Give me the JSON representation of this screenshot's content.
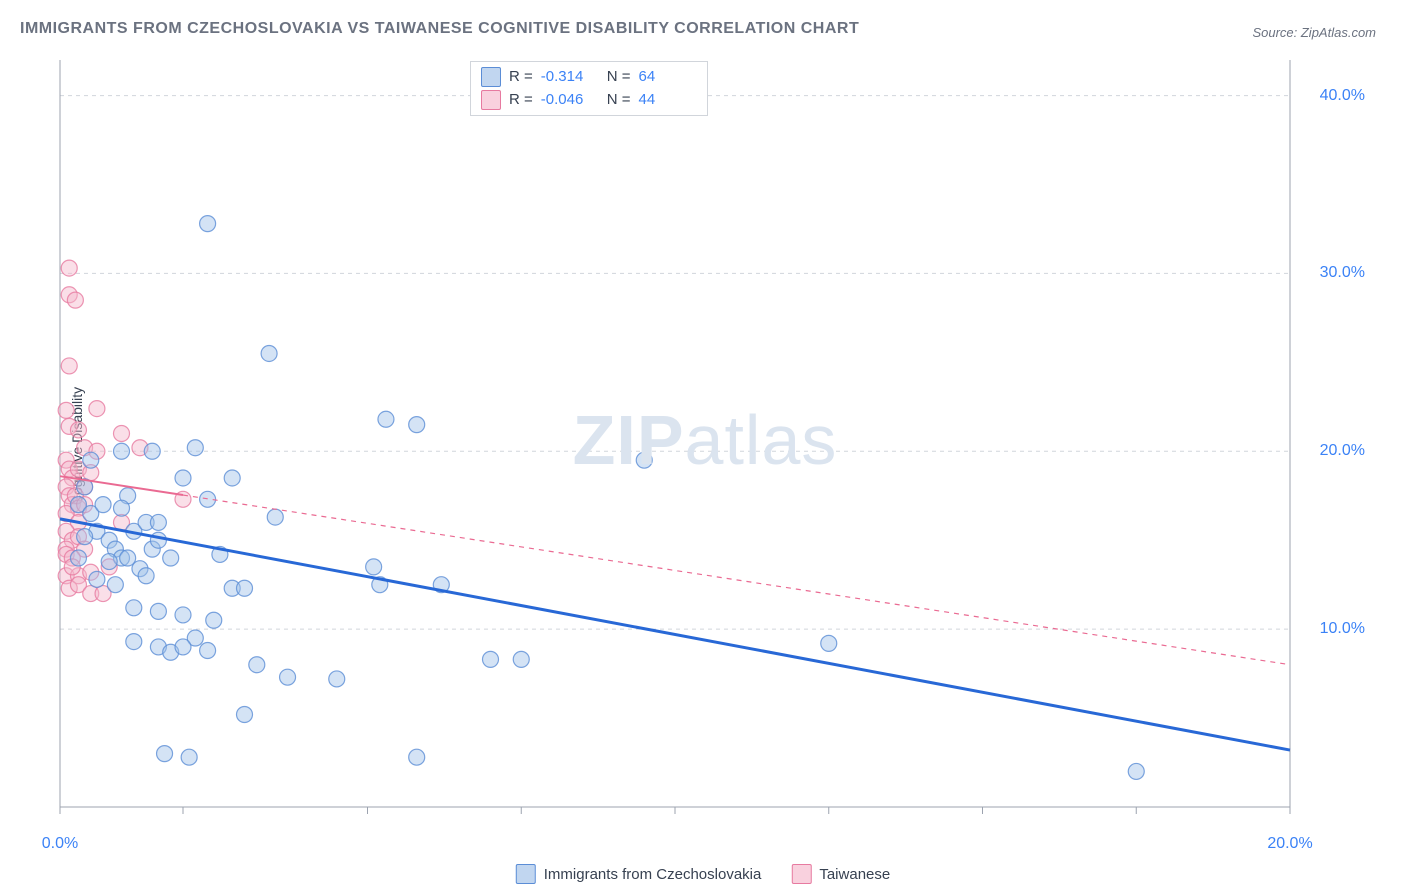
{
  "title": "IMMIGRANTS FROM CZECHOSLOVAKIA VS TAIWANESE COGNITIVE DISABILITY CORRELATION CHART",
  "source": "Source: ZipAtlas.com",
  "ylabel": "Cognitive Disability",
  "watermark_a": "ZIP",
  "watermark_b": "atlas",
  "chart": {
    "type": "scatter",
    "background_color": "#ffffff",
    "grid_color": "#d1d5db",
    "axis_color": "#9ca3af",
    "tick_label_color": "#3b82f6",
    "xlim": [
      0,
      20
    ],
    "ylim": [
      0,
      42
    ],
    "xticks": [
      0,
      2,
      5,
      7.5,
      10,
      12.5,
      15,
      17.5,
      20
    ],
    "xtick_labels": {
      "0": "0.0%",
      "20": "20.0%"
    },
    "yticks": [
      10,
      20,
      30,
      40
    ],
    "ytick_labels": {
      "10": "10.0%",
      "20": "20.0%",
      "30": "30.0%",
      "40": "40.0%"
    },
    "marker_radius": 8,
    "marker_opacity": 0.45,
    "series": [
      {
        "name": "Immigrants from Czechoslovakia",
        "color_fill": "#9fc0e8",
        "color_stroke": "#5b8dd6",
        "trend_color": "#2868d6",
        "trend_width": 3,
        "trend_dash": "none",
        "trend_y_at_x0": 16.2,
        "trend_y_at_x20": 3.2,
        "R": "-0.314",
        "N": "64",
        "points": [
          [
            2.4,
            32.8
          ],
          [
            0.4,
            18.0
          ],
          [
            0.5,
            19.5
          ],
          [
            1.0,
            20.0
          ],
          [
            1.5,
            20.0
          ],
          [
            2.2,
            20.2
          ],
          [
            3.4,
            25.5
          ],
          [
            5.3,
            21.8
          ],
          [
            5.8,
            21.5
          ],
          [
            9.5,
            19.5
          ],
          [
            1.1,
            17.5
          ],
          [
            1.2,
            15.5
          ],
          [
            1.4,
            16.0
          ],
          [
            1.6,
            16.0
          ],
          [
            2.0,
            18.5
          ],
          [
            2.4,
            17.3
          ],
          [
            2.8,
            18.5
          ],
          [
            3.5,
            16.3
          ],
          [
            0.3,
            17.0
          ],
          [
            0.5,
            16.5
          ],
          [
            0.6,
            15.5
          ],
          [
            0.8,
            15.0
          ],
          [
            0.9,
            14.5
          ],
          [
            1.0,
            14.0
          ],
          [
            1.1,
            14.0
          ],
          [
            1.3,
            13.4
          ],
          [
            1.4,
            13.0
          ],
          [
            1.5,
            14.5
          ],
          [
            1.6,
            15.0
          ],
          [
            1.8,
            14.0
          ],
          [
            2.6,
            14.2
          ],
          [
            2.8,
            12.3
          ],
          [
            3.0,
            12.3
          ],
          [
            5.1,
            13.5
          ],
          [
            5.2,
            12.5
          ],
          [
            6.2,
            12.5
          ],
          [
            1.2,
            11.2
          ],
          [
            1.6,
            11.0
          ],
          [
            2.0,
            10.8
          ],
          [
            2.2,
            9.5
          ],
          [
            2.5,
            10.5
          ],
          [
            1.2,
            9.3
          ],
          [
            1.6,
            9.0
          ],
          [
            1.8,
            8.7
          ],
          [
            2.0,
            9.0
          ],
          [
            2.4,
            8.8
          ],
          [
            3.2,
            8.0
          ],
          [
            3.7,
            7.3
          ],
          [
            4.5,
            7.2
          ],
          [
            7.0,
            8.3
          ],
          [
            7.5,
            8.3
          ],
          [
            3.0,
            5.2
          ],
          [
            1.7,
            3.0
          ],
          [
            2.1,
            2.8
          ],
          [
            5.8,
            2.8
          ],
          [
            12.5,
            9.2
          ],
          [
            17.5,
            2.0
          ],
          [
            0.6,
            12.8
          ],
          [
            0.8,
            13.8
          ],
          [
            0.9,
            12.5
          ],
          [
            0.4,
            15.2
          ],
          [
            0.3,
            14.0
          ],
          [
            1.0,
            16.8
          ],
          [
            0.7,
            17.0
          ]
        ]
      },
      {
        "name": "Taiwanese",
        "color_fill": "#f4b8cc",
        "color_stroke": "#e77aa0",
        "trend_color": "#ea6a92",
        "trend_width": 2,
        "trend_dash": "5,5",
        "trend_solid_until_x": 2.0,
        "trend_y_at_x0": 18.6,
        "trend_y_at_x20": 8.0,
        "R": "-0.046",
        "N": "44",
        "points": [
          [
            0.15,
            30.3
          ],
          [
            0.15,
            28.8
          ],
          [
            0.25,
            28.5
          ],
          [
            0.15,
            24.8
          ],
          [
            0.1,
            22.3
          ],
          [
            0.6,
            22.4
          ],
          [
            0.15,
            21.4
          ],
          [
            0.3,
            21.2
          ],
          [
            0.4,
            20.2
          ],
          [
            0.6,
            20.0
          ],
          [
            1.0,
            21.0
          ],
          [
            1.3,
            20.2
          ],
          [
            0.1,
            19.5
          ],
          [
            0.15,
            19.0
          ],
          [
            0.2,
            18.5
          ],
          [
            0.3,
            19.0
          ],
          [
            0.4,
            18.0
          ],
          [
            0.5,
            18.8
          ],
          [
            0.1,
            18.0
          ],
          [
            0.15,
            17.5
          ],
          [
            0.2,
            17.0
          ],
          [
            0.25,
            17.5
          ],
          [
            0.3,
            16.8
          ],
          [
            0.4,
            17.0
          ],
          [
            0.1,
            16.5
          ],
          [
            0.3,
            16.0
          ],
          [
            0.1,
            15.5
          ],
          [
            0.2,
            15.0
          ],
          [
            0.3,
            15.2
          ],
          [
            0.1,
            14.5
          ],
          [
            0.4,
            14.5
          ],
          [
            2.0,
            17.3
          ],
          [
            1.0,
            16.0
          ],
          [
            0.1,
            14.2
          ],
          [
            0.2,
            14.0
          ],
          [
            0.1,
            13.0
          ],
          [
            0.3,
            13.0
          ],
          [
            0.5,
            13.2
          ],
          [
            0.8,
            13.5
          ],
          [
            0.15,
            12.3
          ],
          [
            0.3,
            12.5
          ],
          [
            0.5,
            12.0
          ],
          [
            0.7,
            12.0
          ],
          [
            0.2,
            13.5
          ]
        ]
      }
    ]
  },
  "stats_labels": {
    "R": "R =",
    "N": "N ="
  },
  "legend": {
    "series1": "Immigrants from Czechoslovakia",
    "series2": "Taiwanese"
  }
}
